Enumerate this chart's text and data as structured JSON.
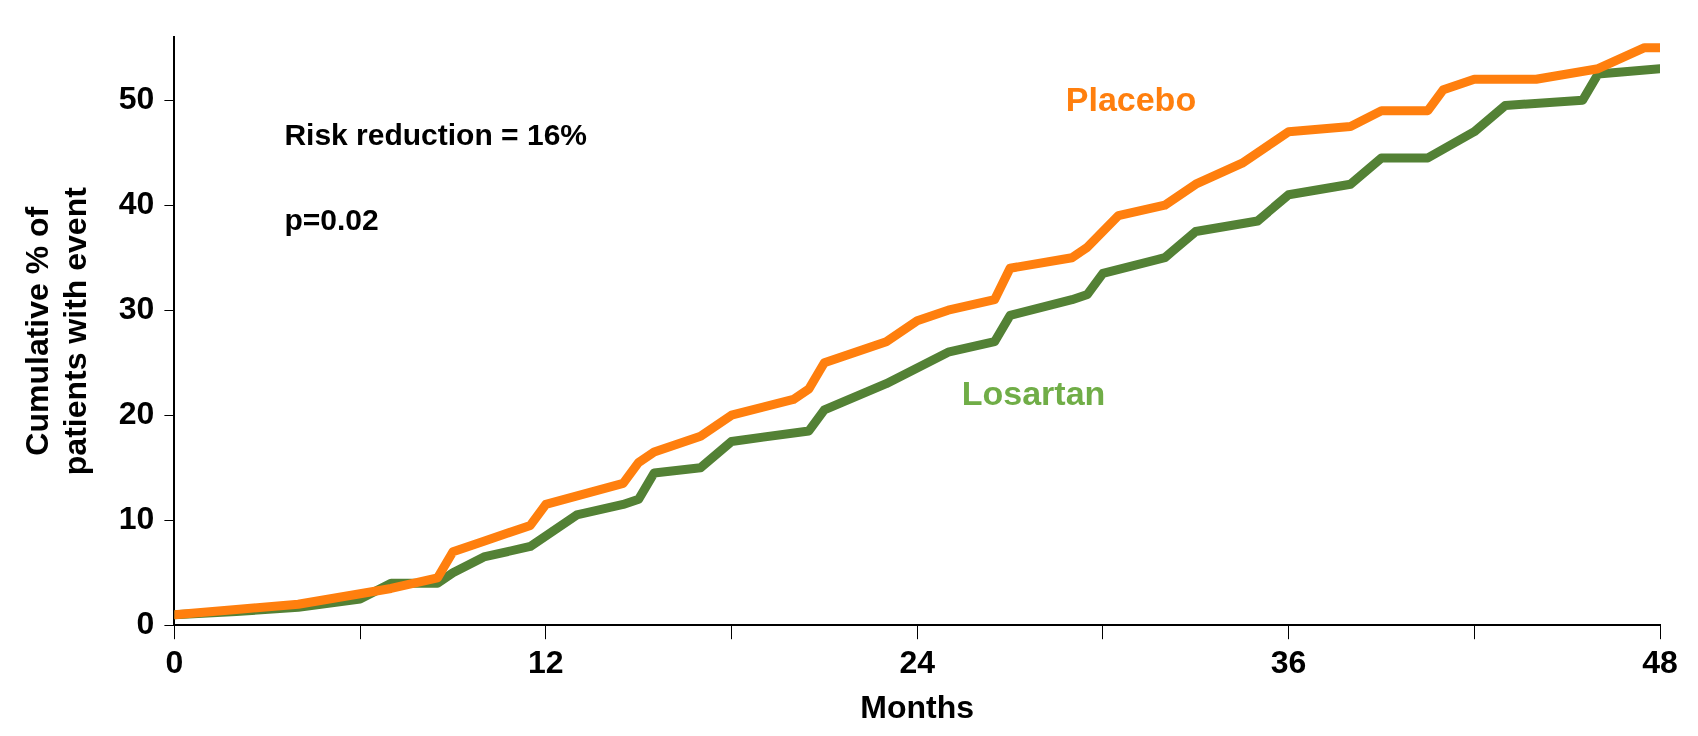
{
  "chart_data": {
    "type": "line",
    "xlabel": "Months",
    "ylabel": "Cumulative % of\npatients with event",
    "annotations": [
      "Risk reduction = 16%",
      "p=0.02"
    ],
    "series": [
      {
        "name": "Placebo",
        "color": "#ff7f0e",
        "x": [
          0,
          2,
          4,
          6,
          7,
          8.5,
          9,
          10,
          11.5,
          12,
          14.5,
          15,
          15.5,
          17,
          18,
          20,
          20.5,
          21,
          22,
          23,
          24,
          25,
          26.5,
          27,
          29,
          29.5,
          30.5,
          32,
          33,
          34.5,
          35.5,
          36,
          38,
          39,
          40.5,
          41,
          42,
          44,
          46,
          47.5,
          48
        ],
        "values": [
          1,
          1.5,
          2,
          3,
          3.5,
          4.5,
          7,
          8,
          9.5,
          11.5,
          13.5,
          15.5,
          16.5,
          18,
          20,
          21.5,
          22.5,
          25,
          26,
          27,
          29,
          30,
          31,
          34,
          35,
          36,
          39,
          40,
          42,
          44,
          46,
          47,
          47.5,
          49,
          49,
          51,
          52,
          52,
          53,
          55,
          55
        ]
      },
      {
        "name": "Losartan",
        "color": "#538135",
        "x": [
          0,
          2,
          4,
          6,
          7,
          8.5,
          9,
          10,
          11.5,
          12,
          13,
          14.5,
          15,
          15.5,
          17,
          18,
          20.5,
          21,
          23,
          24,
          25,
          26.5,
          27,
          29,
          29.5,
          30,
          32,
          33,
          35,
          36,
          38,
          39,
          40.5,
          42,
          43,
          45.5,
          46,
          48
        ],
        "values": [
          1,
          1.3,
          1.7,
          2.5,
          4,
          4,
          5,
          6.5,
          7.5,
          8.5,
          10.5,
          11.5,
          12,
          14.5,
          15,
          17.5,
          18.5,
          20.5,
          23,
          24.5,
          26,
          27,
          29.5,
          31,
          31.5,
          33.5,
          35,
          37.5,
          38.5,
          41,
          42,
          44.5,
          44.5,
          47,
          49.5,
          50,
          52.5,
          53
        ]
      }
    ],
    "xlim": [
      0,
      48
    ],
    "xticks": [
      0,
      {
        "value": 6,
        "label": null
      },
      12,
      {
        "value": 18,
        "label": null
      },
      24,
      {
        "value": 30,
        "label": null
      },
      36,
      {
        "value": 42,
        "label": null
      },
      48
    ],
    "ylim": [
      0,
      56
    ],
    "yticks": [
      0,
      10,
      20,
      30,
      40,
      50
    ],
    "grid": false,
    "legend": false,
    "line_style": "solid",
    "marker": "none"
  }
}
